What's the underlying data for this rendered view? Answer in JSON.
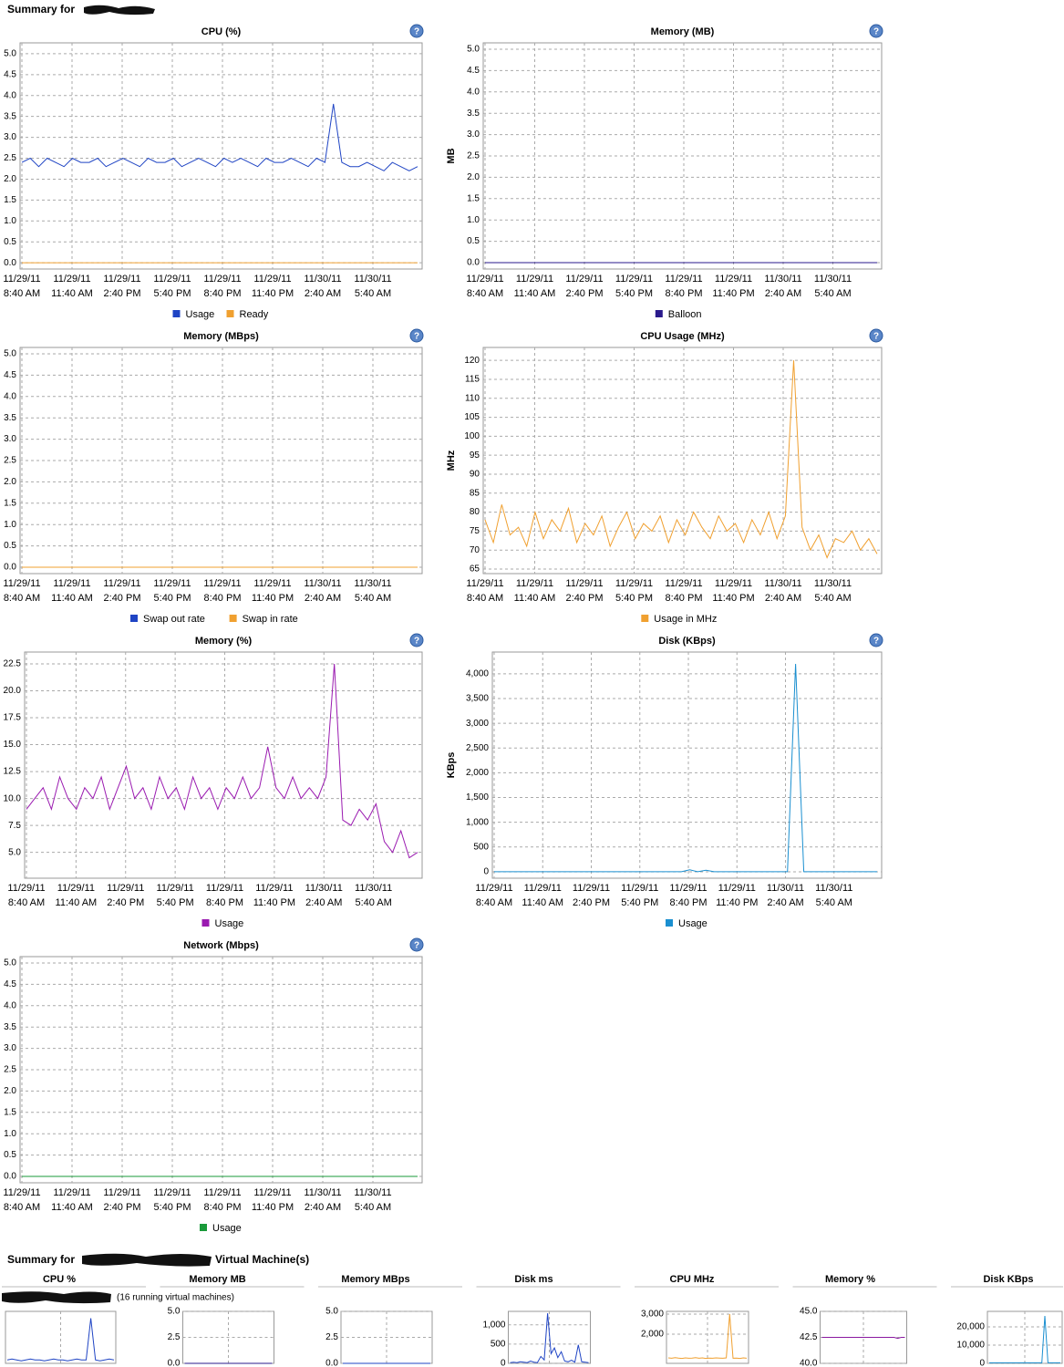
{
  "header": {
    "title": "Summary for"
  },
  "help_icon": "?",
  "time_axis": [
    [
      "11/29/11",
      "8:40 AM"
    ],
    [
      "11/29/11",
      "11:40 AM"
    ],
    [
      "11/29/11",
      "2:40 PM"
    ],
    [
      "11/29/11",
      "5:40 PM"
    ],
    [
      "11/29/11",
      "8:40 PM"
    ],
    [
      "11/29/11",
      "11:40 PM"
    ],
    [
      "11/30/11",
      "2:40 AM"
    ],
    [
      "11/30/11",
      "5:40 AM"
    ]
  ],
  "chart_data": [
    {
      "type": "line",
      "title": "CPU (%)",
      "ylim": [
        -0.15,
        5.26
      ],
      "grid": true,
      "yticks": [
        {
          "value": 0,
          "label": "0.0"
        },
        0.5,
        {
          "value": 1,
          "label": "1.0"
        },
        1.5,
        {
          "value": 2,
          "label": "2.0"
        },
        2.5,
        {
          "value": 3,
          "label": "3.0"
        },
        3.5,
        {
          "value": 4,
          "label": "4.0"
        },
        4.5,
        {
          "value": 5,
          "label": "5.0"
        }
      ],
      "series": [
        {
          "name": "Usage",
          "color": "#1f44c4",
          "values": [
            2.4,
            2.5,
            2.3,
            2.5,
            2.4,
            2.3,
            2.5,
            2.4,
            2.4,
            2.5,
            2.3,
            2.4,
            2.5,
            2.4,
            2.3,
            2.5,
            2.4,
            2.4,
            2.5,
            2.3,
            2.4,
            2.5,
            2.4,
            2.3,
            2.5,
            2.4,
            2.5,
            2.4,
            2.3,
            2.5,
            2.4,
            2.4,
            2.5,
            2.4,
            2.3,
            2.5,
            2.4,
            3.8,
            2.4,
            2.3,
            2.3,
            2.4,
            2.3,
            2.2,
            2.4,
            2.3,
            2.2,
            2.3
          ]
        },
        {
          "name": "Ready",
          "color": "#f0a030",
          "values": [
            0,
            0,
            0,
            0,
            0,
            0,
            0,
            0,
            0,
            0,
            0,
            0,
            0,
            0,
            0,
            0,
            0,
            0,
            0,
            0,
            0,
            0,
            0,
            0,
            0,
            0,
            0,
            0,
            0,
            0,
            0,
            0,
            0,
            0,
            0,
            0,
            0,
            0,
            0,
            0,
            0,
            0,
            0,
            0,
            0,
            0,
            0,
            0
          ]
        }
      ]
    },
    {
      "type": "line",
      "title": "Memory (MB)",
      "y_label": "MB",
      "ylim": [
        -0.15,
        5.15
      ],
      "grid": true,
      "yticks": [
        {
          "value": 0,
          "label": "0.0"
        },
        0.5,
        {
          "value": 1,
          "label": "1.0"
        },
        1.5,
        {
          "value": 2,
          "label": "2.0"
        },
        2.5,
        {
          "value": 3,
          "label": "3.0"
        },
        3.5,
        {
          "value": 4,
          "label": "4.0"
        },
        4.5,
        {
          "value": 5,
          "label": "5.0"
        }
      ],
      "series": [
        {
          "name": "Balloon",
          "color": "#2a1a8c",
          "values": [
            0,
            0,
            0,
            0,
            0,
            0,
            0,
            0,
            0,
            0,
            0,
            0,
            0,
            0,
            0,
            0,
            0,
            0,
            0,
            0,
            0,
            0,
            0,
            0,
            0,
            0,
            0,
            0,
            0,
            0,
            0,
            0,
            0,
            0,
            0,
            0,
            0,
            0,
            0,
            0,
            0,
            0,
            0,
            0,
            0,
            0,
            0,
            0
          ]
        }
      ]
    },
    {
      "type": "line",
      "title": "Memory (MBps)",
      "ylim": [
        -0.15,
        5.15
      ],
      "grid": true,
      "yticks": [
        {
          "value": 0,
          "label": "0.0"
        },
        0.5,
        {
          "value": 1,
          "label": "1.0"
        },
        1.5,
        {
          "value": 2,
          "label": "2.0"
        },
        2.5,
        {
          "value": 3,
          "label": "3.0"
        },
        3.5,
        {
          "value": 4,
          "label": "4.0"
        },
        4.5,
        {
          "value": 5,
          "label": "5.0"
        }
      ],
      "series": [
        {
          "name": "Swap out rate",
          "color": "#1f44c4",
          "values": [
            0,
            0,
            0,
            0,
            0,
            0,
            0,
            0,
            0,
            0,
            0,
            0,
            0,
            0,
            0,
            0,
            0,
            0,
            0,
            0,
            0,
            0,
            0,
            0,
            0,
            0,
            0,
            0,
            0,
            0,
            0,
            0,
            0,
            0,
            0,
            0,
            0,
            0,
            0,
            0,
            0,
            0,
            0,
            0,
            0,
            0,
            0,
            0
          ]
        },
        {
          "name": "Swap in rate",
          "color": "#f0a030",
          "values": [
            0,
            0,
            0,
            0,
            0,
            0,
            0,
            0,
            0,
            0,
            0,
            0,
            0,
            0,
            0,
            0,
            0,
            0,
            0,
            0,
            0,
            0,
            0,
            0,
            0,
            0,
            0,
            0,
            0,
            0,
            0,
            0,
            0,
            0,
            0,
            0,
            0,
            0,
            0,
            0,
            0,
            0,
            0,
            0,
            0,
            0,
            0,
            0
          ]
        }
      ]
    },
    {
      "type": "line",
      "title": "CPU Usage (MHz)",
      "y_label": "MHz",
      "ylim": [
        63.8,
        123.4
      ],
      "grid": true,
      "yticks": [
        65,
        70,
        75,
        80,
        85,
        90,
        95,
        100,
        105,
        110,
        115,
        120
      ],
      "series": [
        {
          "name": "Usage in MHz",
          "color": "#f0a030",
          "values": [
            78,
            72,
            82,
            74,
            76,
            71,
            80,
            73,
            78,
            75,
            81,
            72,
            77,
            74,
            79,
            71,
            76,
            80,
            73,
            77,
            75,
            79,
            72,
            78,
            74,
            80,
            76,
            73,
            79,
            75,
            77,
            72,
            78,
            74,
            80,
            73,
            79,
            120,
            76,
            70,
            74,
            68,
            73,
            72,
            75,
            70,
            73,
            69
          ]
        }
      ]
    },
    {
      "type": "line",
      "title": "Memory (%)",
      "ylim": [
        2.6,
        23.6
      ],
      "grid": true,
      "yticks": [
        {
          "value": 5,
          "label": "5.0"
        },
        7.5,
        {
          "value": 10,
          "label": "10.0"
        },
        12.5,
        {
          "value": 15,
          "label": "15.0"
        },
        17.5,
        {
          "value": 20,
          "label": "20.0"
        },
        22.5
      ],
      "series": [
        {
          "name": "Usage",
          "color": "#9a1ab0",
          "values": [
            9,
            10,
            11,
            9,
            12,
            10,
            9,
            11,
            10,
            12,
            9,
            11,
            13,
            10,
            11,
            9,
            12,
            10,
            11,
            9,
            12,
            10,
            11,
            9,
            11,
            10,
            12,
            10,
            11,
            14.8,
            11,
            10,
            12,
            10,
            11,
            10,
            12,
            22.5,
            8,
            7.5,
            9,
            8,
            9.5,
            6,
            5,
            7,
            4.5,
            5
          ]
        }
      ]
    },
    {
      "type": "line",
      "title": "Disk (KBps)",
      "y_label": "KBps",
      "ylim": [
        -130,
        4440
      ],
      "grid": true,
      "yticks": [
        0,
        500,
        {
          "value": 1000,
          "label": "1,000"
        },
        {
          "value": 1500,
          "label": "1,500"
        },
        {
          "value": 2000,
          "label": "2,000"
        },
        {
          "value": 2500,
          "label": "2,500"
        },
        {
          "value": 3000,
          "label": "3,000"
        },
        {
          "value": 3500,
          "label": "3,500"
        },
        {
          "value": 4000,
          "label": "4,000"
        }
      ],
      "series": [
        {
          "name": "Usage",
          "color": "#1a8fd0",
          "values": [
            0,
            0,
            0,
            0,
            0,
            0,
            0,
            0,
            0,
            0,
            0,
            0,
            0,
            0,
            0,
            0,
            0,
            0,
            0,
            0,
            0,
            0,
            0,
            0,
            40,
            0,
            30,
            0,
            0,
            0,
            0,
            0,
            0,
            0,
            0,
            0,
            0,
            4200,
            0,
            0,
            0,
            0,
            0,
            0,
            0,
            0,
            0,
            0
          ]
        }
      ]
    },
    {
      "type": "line",
      "title": "Network (Mbps)",
      "ylim": [
        -0.15,
        5.15
      ],
      "grid": true,
      "yticks": [
        {
          "value": 0,
          "label": "0.0"
        },
        0.5,
        {
          "value": 1,
          "label": "1.0"
        },
        1.5,
        {
          "value": 2,
          "label": "2.0"
        },
        2.5,
        {
          "value": 3,
          "label": "3.0"
        },
        3.5,
        {
          "value": 4,
          "label": "4.0"
        },
        4.5,
        {
          "value": 5,
          "label": "5.0"
        }
      ],
      "series": [
        {
          "name": "Usage",
          "color": "#1a9a3a",
          "values": [
            0,
            0,
            0,
            0,
            0,
            0,
            0,
            0,
            0,
            0,
            0,
            0,
            0,
            0,
            0,
            0,
            0,
            0,
            0,
            0,
            0,
            0,
            0,
            0,
            0,
            0,
            0,
            0,
            0,
            0,
            0,
            0,
            0,
            0,
            0,
            0,
            0,
            0,
            0,
            0,
            0,
            0,
            0,
            0,
            0,
            0,
            0,
            0
          ]
        }
      ]
    }
  ],
  "vm_summary": {
    "title_prefix": "Summary for",
    "title_suffix": "Virtual Machine(s)",
    "note": "(16 running virtual machines)",
    "charts": [
      {
        "type": "line",
        "title": "CPU %",
        "ylim": [
          0,
          3
        ],
        "color": "#1f44c4",
        "values": [
          0.2,
          0.25,
          0.2,
          0.15,
          0.2,
          0.25,
          0.2,
          0.2,
          0.15,
          0.2,
          0.25,
          0.2,
          0.2,
          0.15,
          0.2,
          0.25,
          0.2,
          0.2,
          2.6,
          0.2,
          0.15,
          0.2,
          0.25,
          0.2
        ]
      },
      {
        "type": "line",
        "title": "Memory MB",
        "ylim": [
          0,
          5
        ],
        "yticks": [
          {
            "value": 0,
            "label": "0.0"
          },
          2.5,
          {
            "value": 5,
            "label": "5.0"
          }
        ],
        "color": "#2a1a8c",
        "values": [
          0,
          0,
          0,
          0,
          0,
          0,
          0,
          0,
          0,
          0,
          0,
          0,
          0,
          0,
          0,
          0,
          0,
          0,
          0,
          0,
          0,
          0,
          0,
          0
        ]
      },
      {
        "type": "line",
        "title": "Memory MBps",
        "ylim": [
          0,
          5
        ],
        "yticks": [
          {
            "value": 0,
            "label": "0.0"
          },
          2.5,
          {
            "value": 5,
            "label": "5.0"
          }
        ],
        "color": "#1f44c4",
        "values": [
          0,
          0,
          0,
          0,
          0,
          0,
          0,
          0,
          0,
          0,
          0,
          0,
          0,
          0,
          0,
          0,
          0,
          0,
          0,
          0,
          0,
          0,
          0,
          0
        ]
      },
      {
        "type": "line",
        "title": "Disk ms",
        "ylim": [
          0,
          1350
        ],
        "yticks": [
          0,
          500,
          {
            "value": 1000,
            "label": "1,000"
          }
        ],
        "color": "#1f44c4",
        "values": [
          20,
          30,
          20,
          40,
          30,
          20,
          60,
          30,
          20,
          180,
          90,
          1300,
          250,
          400,
          150,
          300,
          60,
          40,
          80,
          30,
          480,
          40,
          30,
          20
        ]
      },
      {
        "type": "line",
        "title": "CPU MHz",
        "ylim": [
          545,
          3136
        ],
        "yticks": [
          {
            "value": 2000,
            "label": "2,000"
          },
          {
            "value": 3000,
            "label": "3,000"
          }
        ],
        "color": "#f0a030",
        "values": [
          820,
          800,
          830,
          810,
          790,
          820,
          800,
          810,
          830,
          800,
          820,
          790,
          810,
          800,
          820,
          810,
          800,
          820,
          3000,
          800,
          810,
          790,
          820,
          800
        ]
      },
      {
        "type": "line",
        "title": "Memory %",
        "ylim": [
          40,
          45
        ],
        "yticks": [
          {
            "value": 40,
            "label": "40.0"
          },
          42.5,
          {
            "value": 45,
            "label": "45.0"
          }
        ],
        "color": "#8a1aa0",
        "values": [
          42.5,
          42.5,
          42.5,
          42.5,
          42.5,
          42.5,
          42.5,
          42.5,
          42.5,
          42.5,
          42.5,
          42.5,
          42.5,
          42.5,
          42.5,
          42.5,
          42.5,
          42.5,
          42.5,
          42.5,
          42.5,
          42.4,
          42.5,
          42.5
        ]
      },
      {
        "type": "line",
        "title": "Disk KBps",
        "ylim": [
          0,
          28500
        ],
        "yticks": [
          0,
          {
            "value": 10000,
            "label": "10,000"
          },
          {
            "value": 20000,
            "label": "20,000"
          }
        ],
        "color": "#1a8fd0",
        "values": [
          300,
          300,
          300,
          300,
          300,
          300,
          300,
          300,
          300,
          300,
          300,
          300,
          300,
          300,
          300,
          300,
          300,
          300,
          26000,
          300,
          300,
          300,
          300,
          300
        ]
      }
    ]
  }
}
